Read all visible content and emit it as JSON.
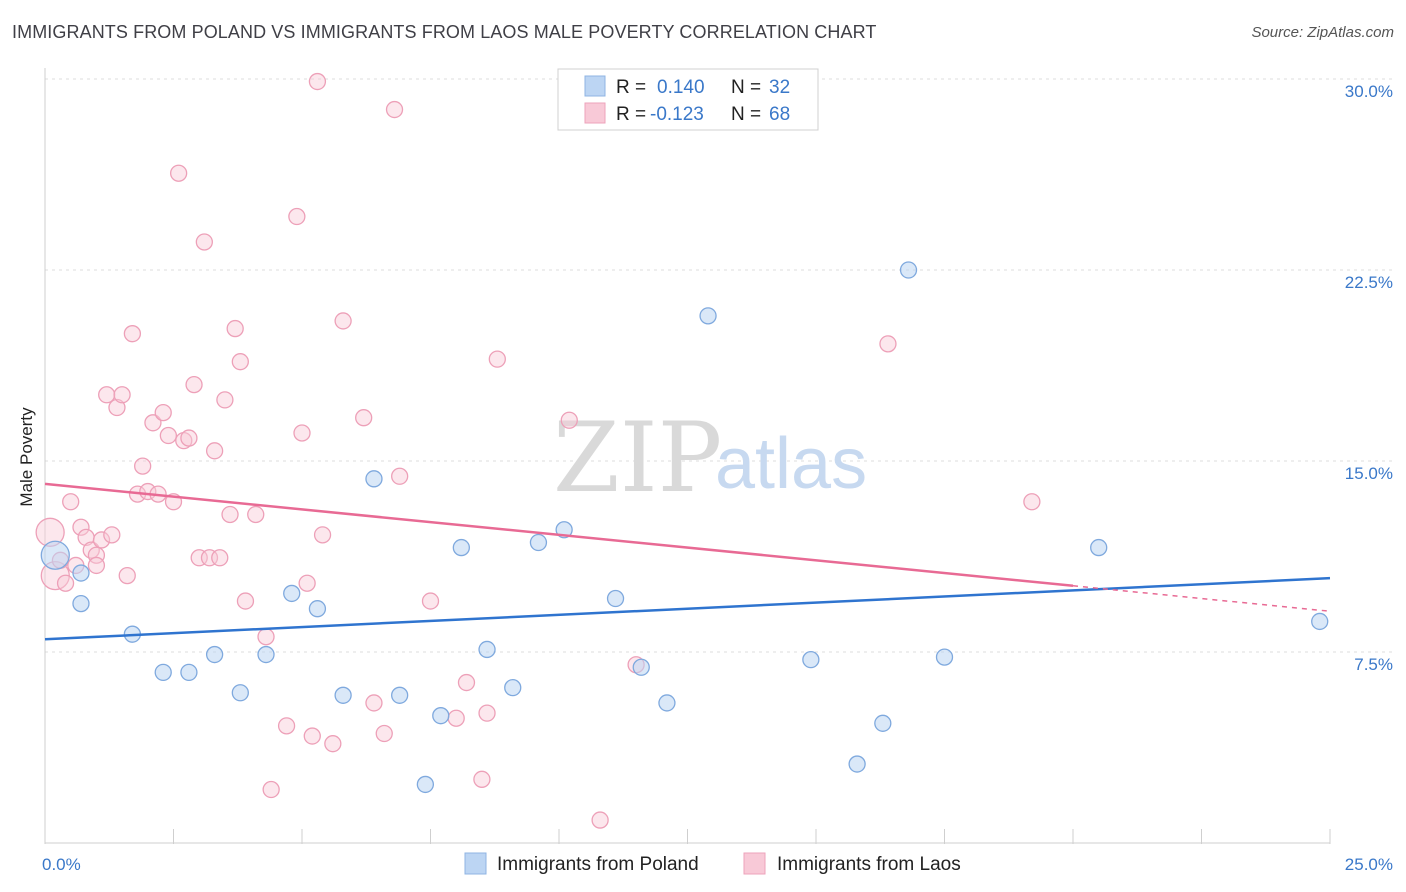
{
  "header": {
    "title": "IMMIGRANTS FROM POLAND VS IMMIGRANTS FROM LAOS MALE POVERTY CORRELATION CHART",
    "source": "Source: ZipAtlas.com"
  },
  "watermark": {
    "zip": "ZIP",
    "atlas": "atlas"
  },
  "legend": {
    "rows": [
      {
        "r_label": "R =",
        "r_value": "0.140",
        "n_label": "N =",
        "n_value": "32"
      },
      {
        "r_label": "R =",
        "r_value": "-0.123",
        "n_label": "N =",
        "n_value": "68"
      }
    ]
  },
  "chart_data": {
    "type": "scatter",
    "title": "IMMIGRANTS FROM POLAND VS IMMIGRANTS FROM LAOS MALE POVERTY CORRELATION CHART",
    "xlabel": "",
    "ylabel": "Male Poverty",
    "xlim": [
      0,
      25
    ],
    "ylim": [
      0,
      30
    ],
    "x_tick_labels": [
      "0.0%",
      "25.0%"
    ],
    "y_ticks": [
      7.5,
      15,
      22.5,
      30
    ],
    "y_tick_labels": [
      "7.5%",
      "15.0%",
      "22.5%",
      "30.0%"
    ],
    "grid": true,
    "legend_position": "top-center",
    "colors": {
      "poland": "#a9c8ef",
      "poland_line": "#2f74cf",
      "laos": "#f5b9cb",
      "laos_line": "#e86a94",
      "tick": "#3a78c9"
    },
    "series": [
      {
        "name": "Immigrants from Poland",
        "r": 0.14,
        "n": 32,
        "trend": {
          "x": [
            0,
            25
          ],
          "y": [
            8.0,
            10.4
          ]
        },
        "points": [
          [
            0.2,
            11.3
          ],
          [
            0.7,
            10.6
          ],
          [
            0.7,
            9.4
          ],
          [
            1.7,
            8.2
          ],
          [
            2.3,
            6.7
          ],
          [
            2.8,
            6.7
          ],
          [
            3.3,
            7.4
          ],
          [
            3.8,
            5.9
          ],
          [
            4.3,
            7.4
          ],
          [
            4.8,
            9.8
          ],
          [
            5.3,
            9.2
          ],
          [
            5.8,
            5.8
          ],
          [
            6.4,
            14.3
          ],
          [
            6.9,
            5.8
          ],
          [
            7.4,
            2.3
          ],
          [
            7.7,
            5.0
          ],
          [
            8.1,
            11.6
          ],
          [
            8.6,
            7.6
          ],
          [
            9.1,
            6.1
          ],
          [
            9.6,
            11.8
          ],
          [
            10.1,
            12.3
          ],
          [
            11.1,
            9.6
          ],
          [
            11.6,
            6.9
          ],
          [
            12.1,
            5.5
          ],
          [
            12.9,
            20.7
          ],
          [
            14.9,
            7.2
          ],
          [
            15.8,
            3.1
          ],
          [
            16.3,
            4.7
          ],
          [
            16.8,
            22.5
          ],
          [
            17.5,
            7.3
          ],
          [
            20.5,
            11.6
          ],
          [
            24.8,
            8.7
          ]
        ]
      },
      {
        "name": "Immigrants from Laos",
        "r": -0.123,
        "n": 68,
        "trend": {
          "x": [
            0,
            20
          ],
          "y": [
            14.1,
            10.1
          ]
        },
        "trend_dashed": {
          "x": [
            20,
            25
          ],
          "y": [
            10.1,
            9.1
          ]
        },
        "points": [
          [
            0.1,
            12.2
          ],
          [
            0.2,
            10.5
          ],
          [
            0.3,
            11.1
          ],
          [
            0.4,
            10.2
          ],
          [
            0.5,
            13.4
          ],
          [
            0.6,
            10.9
          ],
          [
            0.7,
            12.4
          ],
          [
            0.8,
            12.0
          ],
          [
            0.9,
            11.5
          ],
          [
            1.0,
            11.3
          ],
          [
            1.0,
            10.9
          ],
          [
            1.1,
            11.9
          ],
          [
            1.2,
            17.6
          ],
          [
            1.3,
            12.1
          ],
          [
            1.4,
            17.1
          ],
          [
            1.5,
            17.6
          ],
          [
            1.6,
            10.5
          ],
          [
            1.7,
            20.0
          ],
          [
            1.8,
            13.7
          ],
          [
            1.9,
            14.8
          ],
          [
            2.0,
            13.8
          ],
          [
            2.1,
            16.5
          ],
          [
            2.2,
            13.7
          ],
          [
            2.3,
            16.9
          ],
          [
            2.4,
            16.0
          ],
          [
            2.5,
            13.4
          ],
          [
            2.6,
            26.3
          ],
          [
            2.7,
            15.8
          ],
          [
            2.8,
            15.9
          ],
          [
            2.9,
            18.0
          ],
          [
            3.0,
            11.2
          ],
          [
            3.1,
            23.6
          ],
          [
            3.2,
            11.2
          ],
          [
            3.3,
            15.4
          ],
          [
            3.4,
            11.2
          ],
          [
            3.5,
            17.4
          ],
          [
            3.6,
            12.9
          ],
          [
            3.7,
            20.2
          ],
          [
            3.8,
            18.9
          ],
          [
            3.9,
            9.5
          ],
          [
            4.1,
            12.9
          ],
          [
            4.3,
            8.1
          ],
          [
            4.4,
            2.1
          ],
          [
            4.7,
            4.6
          ],
          [
            4.9,
            24.6
          ],
          [
            5.0,
            16.1
          ],
          [
            5.1,
            10.2
          ],
          [
            5.2,
            4.2
          ],
          [
            5.3,
            29.9
          ],
          [
            5.4,
            12.1
          ],
          [
            5.6,
            3.9
          ],
          [
            5.8,
            20.5
          ],
          [
            6.2,
            16.7
          ],
          [
            6.4,
            5.5
          ],
          [
            6.6,
            4.3
          ],
          [
            6.8,
            28.8
          ],
          [
            6.9,
            14.4
          ],
          [
            7.5,
            9.5
          ],
          [
            8.0,
            4.9
          ],
          [
            8.2,
            6.3
          ],
          [
            8.5,
            2.5
          ],
          [
            8.6,
            5.1
          ],
          [
            8.8,
            19.0
          ],
          [
            10.2,
            16.6
          ],
          [
            10.8,
            0.9
          ],
          [
            11.5,
            7.0
          ],
          [
            16.4,
            19.6
          ],
          [
            19.2,
            13.4
          ]
        ]
      }
    ]
  },
  "bottom_legend": [
    {
      "label": "Immigrants from Poland"
    },
    {
      "label": "Immigrants from Laos"
    }
  ]
}
